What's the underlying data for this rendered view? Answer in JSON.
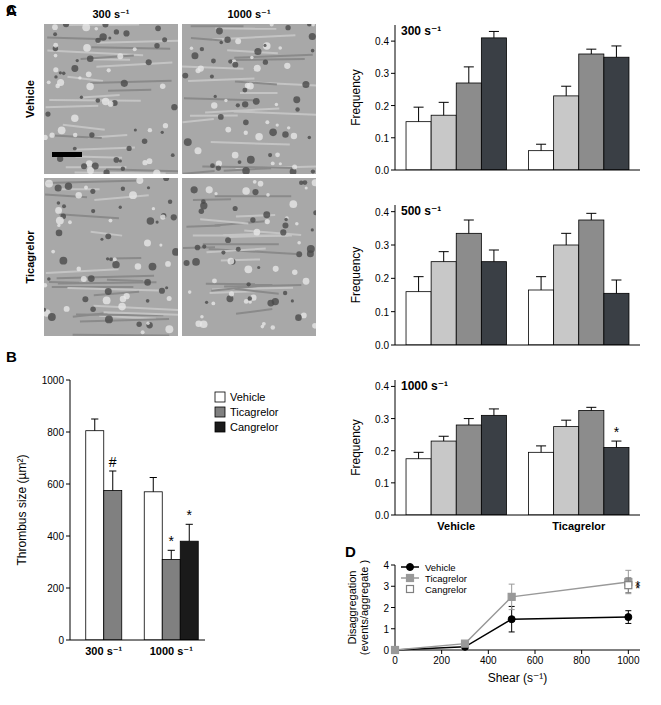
{
  "panel_a": {
    "panel_label": "A",
    "columns": [
      "300 s⁻¹",
      "1000 s⁻¹"
    ],
    "rows": [
      "Vehicle",
      "Ticagrelor"
    ]
  },
  "chart_data": [
    {
      "type": "bar",
      "panel_label": "B",
      "ylabel": "Thrombus size (µm²)",
      "categories": [
        "300 s⁻¹",
        "1000 s⁻¹"
      ],
      "series": [
        {
          "name": "Vehicle",
          "color": "#ffffff",
          "values": [
            805,
            570
          ],
          "errors": [
            45,
            55
          ],
          "significance": [
            null,
            null
          ]
        },
        {
          "name": "Ticagrelor",
          "color": "#808080",
          "values": [
            575,
            310
          ],
          "errors": [
            75,
            35
          ],
          "significance": [
            "#",
            "*"
          ]
        },
        {
          "name": "Cangrelor",
          "color": "#1a1a1a",
          "values": [
            null,
            380
          ],
          "errors": [
            null,
            65
          ],
          "significance": [
            null,
            "*"
          ]
        }
      ],
      "ylim": [
        0,
        1000
      ],
      "yticks": [
        0,
        200,
        400,
        600,
        800,
        1000
      ],
      "legend": "top-right"
    },
    {
      "type": "bar",
      "panel_label": "C",
      "title": "300 s⁻¹",
      "ylabel": "Frequency",
      "categories": [
        null,
        null
      ],
      "series": [
        {
          "color": "#ffffff",
          "values": [
            0.15,
            0.06
          ],
          "errors": [
            0.045,
            0.02
          ],
          "significance": [
            null,
            null
          ]
        },
        {
          "color": "#c8c8c8",
          "values": [
            0.17,
            0.23
          ],
          "errors": [
            0.04,
            0.03
          ],
          "significance": [
            null,
            null
          ]
        },
        {
          "color": "#8c8c8c",
          "values": [
            0.27,
            0.36
          ],
          "errors": [
            0.05,
            0.015
          ],
          "significance": [
            null,
            null
          ]
        },
        {
          "color": "#3a3f45",
          "values": [
            0.41,
            0.35
          ],
          "errors": [
            0.02,
            0.035
          ],
          "significance": [
            null,
            null
          ]
        }
      ],
      "ylim": [
        0,
        0.45
      ],
      "yticks": [
        {
          "value": 0,
          "label": "0.0"
        },
        0.1,
        0.2,
        0.3,
        0.4
      ]
    },
    {
      "type": "bar",
      "title": "500 s⁻¹",
      "ylabel": "Frequency",
      "categories": [
        null,
        null
      ],
      "series": [
        {
          "color": "#ffffff",
          "values": [
            0.16,
            0.165
          ],
          "errors": [
            0.045,
            0.04
          ],
          "significance": [
            null,
            null
          ]
        },
        {
          "color": "#c8c8c8",
          "values": [
            0.25,
            0.3
          ],
          "errors": [
            0.03,
            0.035
          ],
          "significance": [
            null,
            null
          ]
        },
        {
          "color": "#8c8c8c",
          "values": [
            0.335,
            0.375
          ],
          "errors": [
            0.04,
            0.02
          ],
          "significance": [
            null,
            null
          ]
        },
        {
          "color": "#3a3f45",
          "values": [
            0.25,
            0.155
          ],
          "errors": [
            0.035,
            0.04
          ],
          "significance": [
            null,
            null
          ]
        }
      ],
      "ylim": [
        0,
        0.42
      ],
      "yticks": [
        {
          "value": 0,
          "label": "0.0"
        },
        0.1,
        0.2,
        0.3,
        0.4
      ]
    },
    {
      "type": "bar",
      "title": "1000 s⁻¹",
      "ylabel": "Frequency",
      "categories": [
        "Vehicle",
        "Ticagrelor"
      ],
      "series": [
        {
          "color": "#ffffff",
          "values": [
            0.175,
            0.195
          ],
          "errors": [
            0.02,
            0.02
          ],
          "significance": [
            null,
            null
          ]
        },
        {
          "color": "#c8c8c8",
          "values": [
            0.23,
            0.275
          ],
          "errors": [
            0.015,
            0.02
          ],
          "significance": [
            null,
            null
          ]
        },
        {
          "color": "#8c8c8c",
          "values": [
            0.28,
            0.325
          ],
          "errors": [
            0.02,
            0.01
          ],
          "significance": [
            null,
            null
          ]
        },
        {
          "color": "#3a3f45",
          "values": [
            0.31,
            0.21
          ],
          "errors": [
            0.02,
            0.02
          ],
          "significance": [
            null,
            "*"
          ]
        }
      ],
      "ylim": [
        0,
        0.42
      ],
      "yticks": [
        {
          "value": 0,
          "label": "0.0"
        },
        0.1,
        0.2,
        0.3,
        0.4
      ]
    },
    {
      "type": "line",
      "panel_label": "D",
      "ylabel": "Disaggregation (events/aggregate )",
      "xlabel": "Shear (s⁻¹)",
      "x": [
        0,
        300,
        500,
        1000
      ],
      "series": [
        {
          "name": "Vehicle",
          "color": "#000000",
          "marker": "circle",
          "values": [
            0,
            0.15,
            1.45,
            1.55
          ],
          "errors": [
            0,
            0.05,
            0.6,
            0.3
          ],
          "significance": [
            null,
            null,
            null,
            null
          ]
        },
        {
          "name": "Ticagrelor",
          "color": "#999999",
          "marker": "square",
          "values": [
            0,
            0.3,
            2.5,
            3.2
          ],
          "errors": [
            0,
            0.1,
            0.6,
            0.55
          ],
          "significance": [
            null,
            null,
            null,
            "*"
          ]
        },
        {
          "name": "Cangrelor",
          "type": "scatter",
          "color": "#808080",
          "marker": "open-square",
          "values": [
            null,
            null,
            null,
            3.05
          ],
          "errors": [
            null,
            null,
            null,
            0.35
          ],
          "significance": [
            null,
            null,
            null,
            "*"
          ]
        }
      ],
      "xlim": [
        0,
        1050
      ],
      "xticks": [
        0,
        200,
        400,
        600,
        800,
        1000
      ],
      "ylim": [
        0,
        4
      ],
      "yticks": [
        0,
        1,
        2,
        3,
        4
      ],
      "legend": "top-left"
    }
  ]
}
